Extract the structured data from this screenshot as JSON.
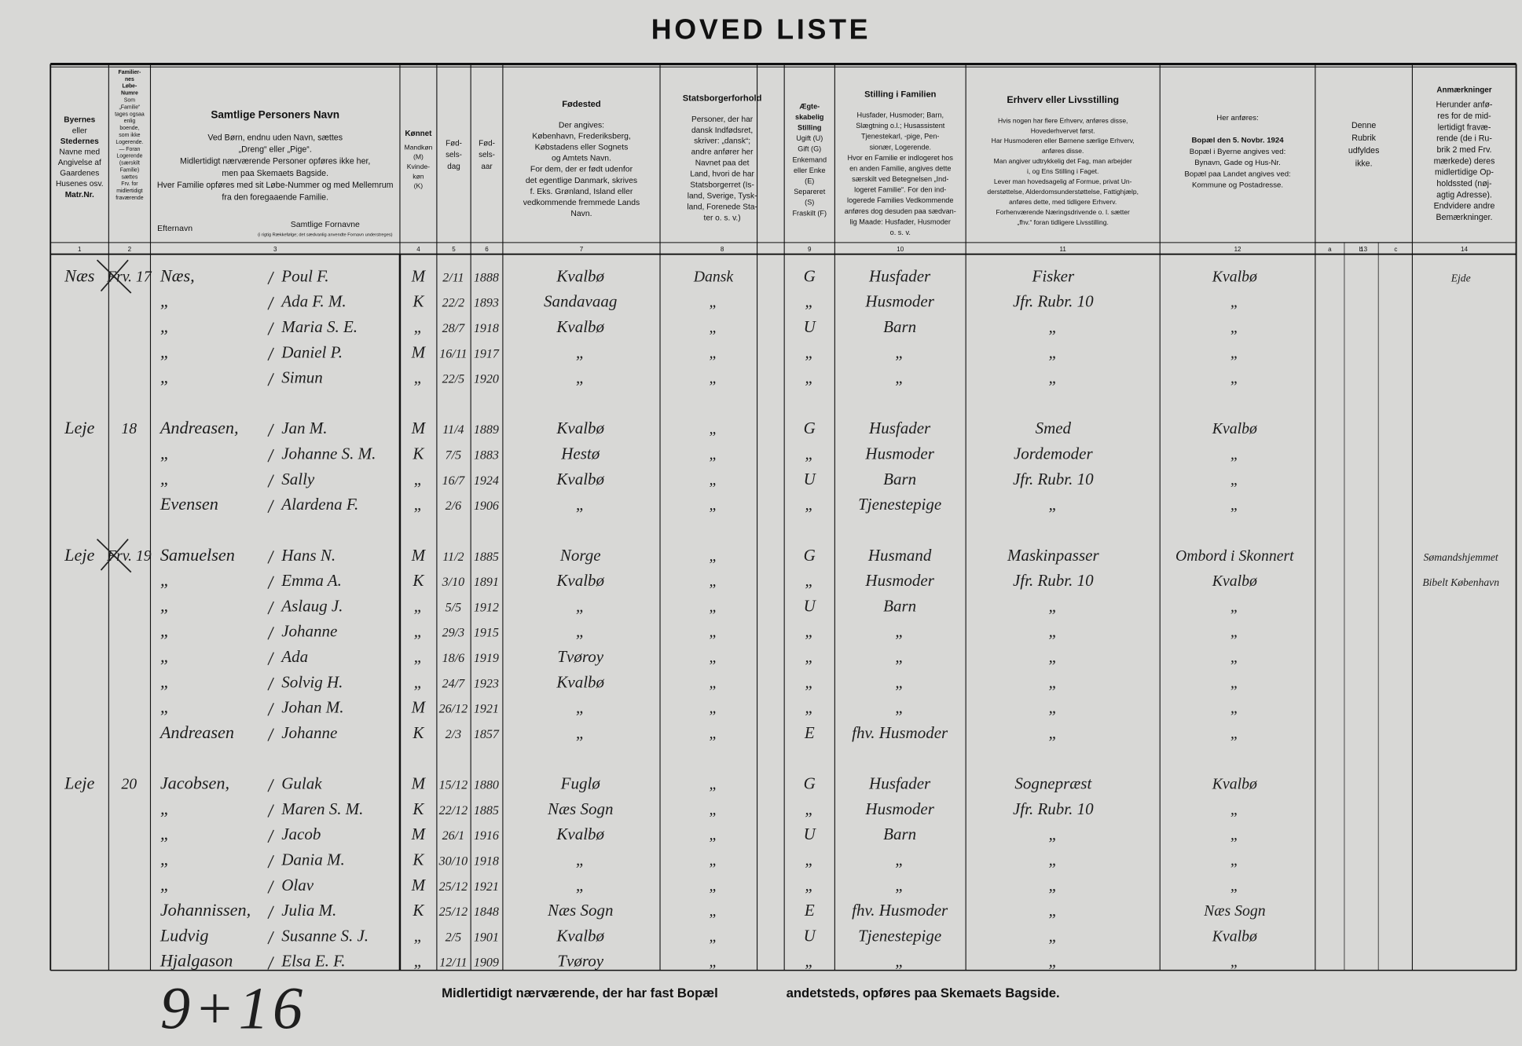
{
  "header": {
    "title": "HOVED LISTE"
  },
  "columns": [
    {
      "lines": [
        "Byernes",
        "eller",
        "Stedernes",
        "Navne med",
        "Angivelse af",
        "Gaardenes",
        "Husenes osv.",
        "Matr.Nr."
      ]
    },
    {
      "lines": [
        "Familier-",
        "nes",
        "Løbe-",
        "Numre",
        "Som",
        "„Familie“",
        "tages ogsaa",
        "enlig",
        "boende,",
        "som ikke",
        "Logerende.",
        "— Foran",
        "Logerende",
        "(særskilt",
        "Familie)",
        "sættes",
        "Frv. for",
        "midlertidigt",
        "fraværende"
      ]
    },
    {
      "title": "Samtlige Personers Navn",
      "lines": [
        "Ved Børn, endnu uden Navn, sættes",
        "„Dreng“ eller „Pige“.",
        "Midlertidigt nærværende Personer opføres ikke her,",
        "men paa Skemaets Bagside.",
        "Hver Familie opføres med sit Løbe-Nummer og med Mellemrum",
        "fra den foregaaende Familie."
      ]
    },
    {
      "title": "Kønnet",
      "lines": [
        "Mandkøn",
        "(M)",
        "Kvinde-",
        "køn",
        "(K)"
      ]
    },
    {
      "lines": [
        "Fød-",
        "sels-",
        "dag"
      ]
    },
    {
      "lines": [
        "Fød-",
        "sels-",
        "aar"
      ]
    },
    {
      "title": "Fødested",
      "lines": [
        "Der angives:",
        "København, Frederiksberg,",
        "Købstadens eller Sognets",
        "og Amtets Navn.",
        "For dem, der er født udenfor",
        "det egentlige Danmark, skrives",
        "f. Eks. Grønland, Island eller",
        "vedkommende fremmede Lands",
        "Navn."
      ]
    },
    {
      "title": "Statsborgerforhold",
      "lines": [
        "Personer, der har",
        "dansk Indfødsret,",
        "skriver: „dansk“;",
        "andre anfører her",
        "Navnet paa det",
        "Land, hvori de har",
        "Statsborgerret (Is-",
        "land, Sverige, Tysk-",
        "land, Forenede Sta-",
        "ter o. s. v.)"
      ]
    },
    {
      "lines": [
        "Ægte-",
        "skabelig",
        "Stilling",
        "Ugift (U)",
        "Gift (G)",
        "Enkemand",
        "eller Enke",
        "(E)",
        "Separeret",
        "(S)",
        "Fraskilt (F)"
      ]
    },
    {
      "title": "Stilling i Familien",
      "lines": [
        "Husfader, Husmoder; Barn,",
        "Slægtning o.l.; Husassistent",
        "Tjenestekarl, -pige, Pen-",
        "sionær, Logerende.",
        "Hvor en Familie er indlogeret hos",
        "en anden Familie, angives dette",
        "særskilt ved Betegnelsen „Ind-",
        "logeret Familie“. For den ind-",
        "logerede Families Vedkommende",
        "anføres dog desuden paa sædvan-",
        "lig Maade: Husfader, Husmoder",
        "o. s. v."
      ]
    },
    {
      "title": "Erhverv eller Livsstilling",
      "lines": [
        "Hvis nogen har flere Erhverv, anføres disse,",
        "Hovederhvervet først.",
        "Har Husmoderen eller Børnene særlige Erhverv,",
        "anføres disse.",
        "Man angiver udtrykkelig det Fag, man arbejder",
        "i, og Ens Stilling i Faget.",
        "Lever man hovedsagelig af Formue, privat Un-",
        "derstøttelse, Alderdomsunderstøttelse, Fattighjælp,",
        "anføres dette, med tidligere Erhverv.",
        "Forhenværende Næringsdrivende o. l. sætter",
        "„fhv.“ foran tidligere Livsstilling."
      ]
    },
    {
      "lines": [
        "Her anføres:",
        "",
        "Bopæl den 5. Novbr. 1924",
        "Bopæl i Byerne angives ved:",
        "Bynavn, Gade og Hus-Nr.",
        "Bopæl paa Landet angives ved:",
        "Kommune og Postadresse."
      ]
    },
    {
      "lines": [
        "Denne",
        "Rubrik",
        "udfyldes",
        "ikke."
      ]
    },
    {
      "title": "Anmærkninger",
      "lines": [
        "Herunder anfø-",
        "res for de mid-",
        "lertidigt fravæ-",
        "rende (de i Ru-",
        "brik 2 med Frv.",
        "mærkede) deres",
        "midlertidige Op-",
        "holdssted (nøj-",
        "agtig Adresse).",
        "Endvidere andre",
        "Bemærkninger."
      ]
    }
  ],
  "name_labels": {
    "surname": "Efternavn",
    "given": "Samtlige Fornavne",
    "given_note": "(i rigtig Rækkefølge; det sædvanlig anvendte Fornavn understreges)"
  },
  "column_numbers": [
    "1",
    "2",
    "3",
    "4",
    "5",
    "6",
    "7",
    "8",
    "9",
    "10",
    "11",
    "12",
    "13",
    "14"
  ],
  "column_13_parts": [
    "a",
    "b",
    "c"
  ],
  "families": [
    {
      "rows": [
        {
          "place": "Næs",
          "no": "Frv. 17",
          "surname": "Næs,",
          "given": "Poul F.",
          "sex": "M",
          "day": "2/11",
          "year": "1888",
          "birthplace": "Kvalbø",
          "citizenship": "Dansk",
          "marital": "G",
          "position": "Husfader",
          "occupation": "Fisker",
          "residence": "Kvalbø",
          "remarks": "Ejde"
        },
        {
          "surname": "„",
          "given": "Ada F. M.",
          "sex": "K",
          "day": "22/2",
          "year": "1893",
          "birthplace": "Sandavaag",
          "citizenship": "„",
          "marital": "„",
          "position": "Husmoder",
          "occupation": "Jfr. Rubr. 10",
          "residence": "„"
        },
        {
          "surname": "„",
          "given": "Maria S. E.",
          "sex": "„",
          "day": "28/7",
          "year": "1918",
          "birthplace": "Kvalbø",
          "citizenship": "„",
          "marital": "U",
          "position": "Barn",
          "occupation": "„",
          "residence": "„"
        },
        {
          "surname": "„",
          "given": "Daniel P.",
          "sex": "M",
          "day": "16/11",
          "year": "1917",
          "birthplace": "„",
          "citizenship": "„",
          "marital": "„",
          "position": "„",
          "occupation": "„",
          "residence": "„"
        },
        {
          "surname": "„",
          "given": "Simun",
          "sex": "„",
          "day": "22/5",
          "year": "1920",
          "birthplace": "„",
          "citizenship": "„",
          "marital": "„",
          "position": "„",
          "occupation": "„",
          "residence": "„"
        }
      ]
    },
    {
      "rows": [
        {
          "place": "Leje",
          "no": "18",
          "surname": "Andreasen,",
          "given": "Jan M.",
          "sex": "M",
          "day": "11/4",
          "year": "1889",
          "birthplace": "Kvalbø",
          "citizenship": "„",
          "marital": "G",
          "position": "Husfader",
          "occupation": "Smed",
          "residence": "Kvalbø"
        },
        {
          "surname": "„",
          "given": "Johanne S. M.",
          "sex": "K",
          "day": "7/5",
          "year": "1883",
          "birthplace": "Hestø",
          "citizenship": "„",
          "marital": "„",
          "position": "Husmoder",
          "occupation": "Jordemoder",
          "residence": "„"
        },
        {
          "surname": "„",
          "given": "Sally",
          "sex": "„",
          "day": "16/7",
          "year": "1924",
          "birthplace": "Kvalbø",
          "citizenship": "„",
          "marital": "U",
          "position": "Barn",
          "occupation": "Jfr. Rubr. 10",
          "residence": "„"
        },
        {
          "surname": "Evensen",
          "given": "Alardena F.",
          "sex": "„",
          "day": "2/6",
          "year": "1906",
          "birthplace": "„",
          "citizenship": "„",
          "marital": "„",
          "position": "Tjenestepige",
          "occupation": "„",
          "residence": "„"
        }
      ]
    },
    {
      "rows": [
        {
          "place": "Leje",
          "no": "Frv. 19",
          "surname": "Samuelsen",
          "given": "Hans N.",
          "sex": "M",
          "day": "11/2",
          "year": "1885",
          "birthplace": "Norge",
          "citizenship": "„",
          "marital": "G",
          "position": "Husmand",
          "occupation": "Maskinpasser",
          "residence": "Ombord i Skonnert",
          "remarks": "Sømandshjemmet"
        },
        {
          "surname": "„",
          "given": "Emma A.",
          "sex": "K",
          "day": "3/10",
          "year": "1891",
          "birthplace": "Kvalbø",
          "citizenship": "„",
          "marital": "„",
          "position": "Husmoder",
          "occupation": "Jfr. Rubr. 10",
          "residence": "Kvalbø",
          "remarks": "Bibelt København"
        },
        {
          "surname": "„",
          "given": "Aslaug J.",
          "sex": "„",
          "day": "5/5",
          "year": "1912",
          "birthplace": "„",
          "citizenship": "„",
          "marital": "U",
          "position": "Barn",
          "occupation": "„",
          "residence": "„"
        },
        {
          "surname": "„",
          "given": "Johanne",
          "sex": "„",
          "day": "29/3",
          "year": "1915",
          "birthplace": "„",
          "citizenship": "„",
          "marital": "„",
          "position": "„",
          "occupation": "„",
          "residence": "„"
        },
        {
          "surname": "„",
          "given": "Ada",
          "sex": "„",
          "day": "18/6",
          "year": "1919",
          "birthplace": "Tvøroy",
          "citizenship": "„",
          "marital": "„",
          "position": "„",
          "occupation": "„",
          "residence": "„"
        },
        {
          "surname": "„",
          "given": "Solvig H.",
          "sex": "„",
          "day": "24/7",
          "year": "1923",
          "birthplace": "Kvalbø",
          "citizenship": "„",
          "marital": "„",
          "position": "„",
          "occupation": "„",
          "residence": "„"
        },
        {
          "surname": "„",
          "given": "Johan M.",
          "sex": "M",
          "day": "26/12",
          "year": "1921",
          "birthplace": "„",
          "citizenship": "„",
          "marital": "„",
          "position": "„",
          "occupation": "„",
          "residence": "„"
        },
        {
          "surname": "Andreasen",
          "given": "Johanne",
          "sex": "K",
          "day": "2/3",
          "year": "1857",
          "birthplace": "„",
          "citizenship": "„",
          "marital": "E",
          "position": "fhv. Husmoder",
          "occupation": "„",
          "residence": "„"
        }
      ]
    },
    {
      "rows": [
        {
          "place": "Leje",
          "no": "20",
          "surname": "Jacobsen,",
          "given": "Gulak",
          "sex": "M",
          "day": "15/12",
          "year": "1880",
          "birthplace": "Fuglø",
          "citizenship": "„",
          "marital": "G",
          "position": "Husfader",
          "occupation": "Sognepræst",
          "residence": "Kvalbø"
        },
        {
          "surname": "„",
          "given": "Maren S. M.",
          "sex": "K",
          "day": "22/12",
          "year": "1885",
          "birthplace": "Næs Sogn",
          "citizenship": "„",
          "marital": "„",
          "position": "Husmoder",
          "occupation": "Jfr. Rubr. 10",
          "residence": "„"
        },
        {
          "surname": "„",
          "given": "Jacob",
          "sex": "M",
          "day": "26/1",
          "year": "1916",
          "birthplace": "Kvalbø",
          "citizenship": "„",
          "marital": "U",
          "position": "Barn",
          "occupation": "„",
          "residence": "„"
        },
        {
          "surname": "„",
          "given": "Dania M.",
          "sex": "K",
          "day": "30/10",
          "year": "1918",
          "birthplace": "„",
          "citizenship": "„",
          "marital": "„",
          "position": "„",
          "occupation": "„",
          "residence": "„"
        },
        {
          "surname": "„",
          "given": "Olav",
          "sex": "M",
          "day": "25/12",
          "year": "1921",
          "birthplace": "„",
          "citizenship": "„",
          "marital": "„",
          "position": "„",
          "occupation": "„",
          "residence": "„"
        },
        {
          "surname": "Johannissen,",
          "given": "Julia M.",
          "sex": "K",
          "day": "25/12",
          "year": "1848",
          "birthplace": "Næs Sogn",
          "citizenship": "„",
          "marital": "E",
          "position": "fhv. Husmoder",
          "occupation": "„",
          "residence": "Næs Sogn"
        },
        {
          "surname": "Ludvig",
          "given": "Susanne S. J.",
          "sex": "„",
          "day": "2/5",
          "year": "1901",
          "birthplace": "Kvalbø",
          "citizenship": "„",
          "marital": "U",
          "position": "Tjenestepige",
          "occupation": "„",
          "residence": "Kvalbø"
        },
        {
          "surname": "Hjalgason",
          "given": "Elsa E. F.",
          "sex": "„",
          "day": "12/11",
          "year": "1909",
          "birthplace": "Tvøroy",
          "citizenship": "„",
          "marital": "„",
          "position": "„",
          "occupation": "„",
          "residence": "„"
        }
      ]
    }
  ],
  "footer": {
    "left": "Midlertidigt nærværende, der har fast Bopæl",
    "right": "andetsteds, opføres paa Skemaets Bagside.",
    "tally": "9+16"
  }
}
